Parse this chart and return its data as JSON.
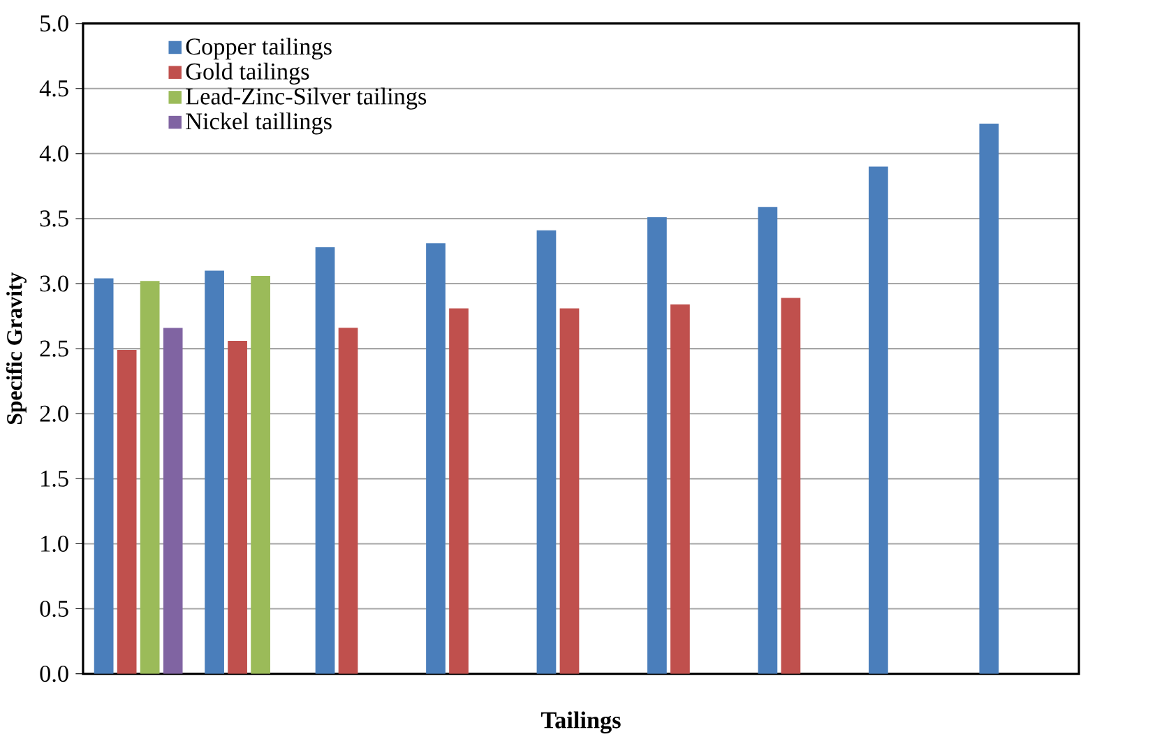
{
  "chart_data": {
    "type": "bar",
    "xlabel": "Tailings",
    "ylabel": "Specific Gravity",
    "categories": [
      null,
      null,
      null,
      null,
      null,
      null,
      null,
      null,
      null
    ],
    "series": [
      {
        "name": "Copper tailings",
        "color": "#4a7ebb",
        "values": [
          3.04,
          3.1,
          3.28,
          3.31,
          3.41,
          3.51,
          3.59,
          3.9,
          4.23
        ]
      },
      {
        "name": "Gold tailings",
        "color": "#c0504d",
        "values": [
          2.49,
          2.56,
          2.66,
          2.81,
          2.81,
          2.84,
          2.89,
          null,
          null
        ]
      },
      {
        "name": "Lead-Zinc-Silver tailings",
        "color": "#9bbb59",
        "values": [
          3.02,
          3.06,
          null,
          null,
          null,
          null,
          null,
          null,
          null
        ]
      },
      {
        "name": "Nickel taillings",
        "color": "#8064a2",
        "values": [
          2.66,
          null,
          null,
          null,
          null,
          null,
          null,
          null,
          null
        ]
      }
    ],
    "ylim": [
      0,
      5
    ],
    "yticks": [
      {
        "value": 0,
        "label": "0.0"
      },
      {
        "value": 0.5,
        "label": "0.5"
      },
      {
        "value": 1,
        "label": "1.0"
      },
      {
        "value": 1.5,
        "label": "1.5"
      },
      {
        "value": 2,
        "label": "2.0"
      },
      {
        "value": 2.5,
        "label": "2.5"
      },
      {
        "value": 3,
        "label": "3.0"
      },
      {
        "value": 3.5,
        "label": "3.5"
      },
      {
        "value": 4,
        "label": "4.0"
      },
      {
        "value": 4.5,
        "label": "4.5"
      },
      {
        "value": 5,
        "label": "5.0"
      }
    ],
    "grid": "y",
    "legend": "top left"
  }
}
